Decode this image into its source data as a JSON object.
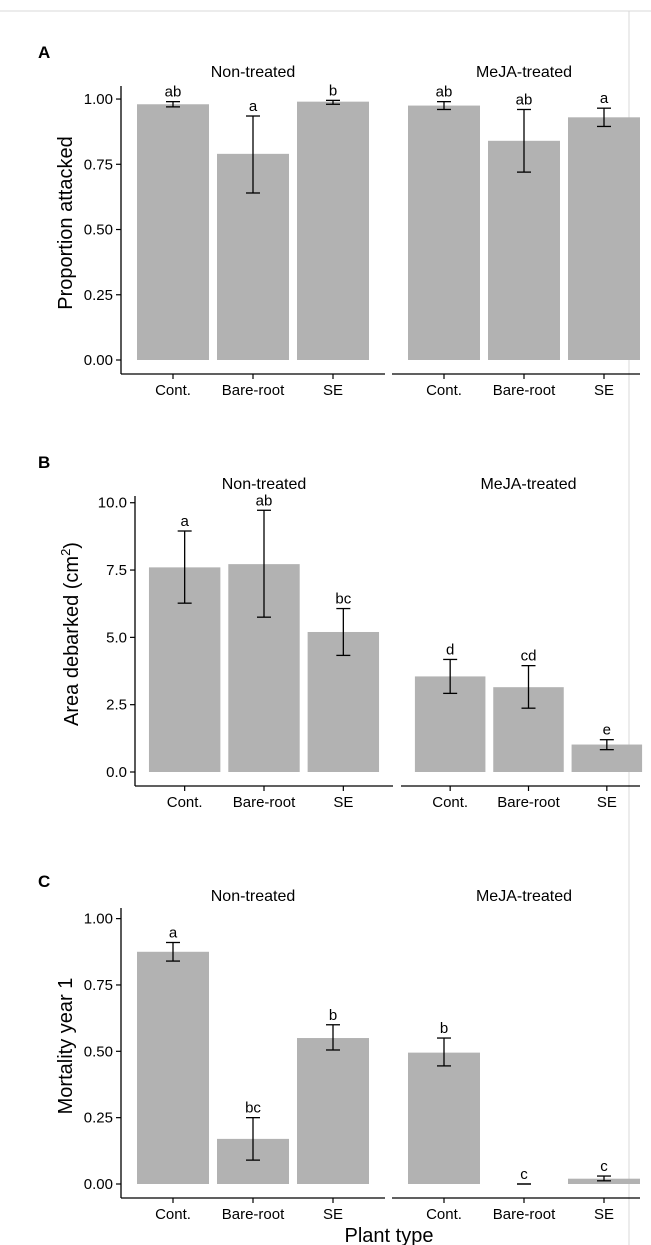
{
  "chart_data": [
    {
      "type": "bar",
      "panel_label": "A",
      "ylabel": "Proportion attacked",
      "ylabel_superscript": "",
      "ylabel_suffix": "",
      "xlabel": "",
      "ylim": [
        0,
        1.05
      ],
      "yticks": [
        "0.00",
        "0.25",
        "0.50",
        "0.75",
        "1.00"
      ],
      "ytick_values": [
        0,
        0.25,
        0.5,
        0.75,
        1.0
      ],
      "facets": [
        "Non-treated",
        "MeJA-treated"
      ],
      "categories": [
        "Cont.",
        "Bare-root",
        "SE"
      ],
      "series": [
        {
          "facet": "Non-treated",
          "values": [
            0.98,
            0.79,
            0.99
          ],
          "err_low": [
            0.97,
            0.64,
            0.98
          ],
          "err_high": [
            0.99,
            0.935,
            0.995
          ],
          "letters": [
            "ab",
            "a",
            "b"
          ]
        },
        {
          "facet": "MeJA-treated",
          "values": [
            0.975,
            0.84,
            0.93
          ],
          "err_low": [
            0.96,
            0.72,
            0.895
          ],
          "err_high": [
            0.99,
            0.96,
            0.965
          ],
          "letters": [
            "ab",
            "ab",
            "a"
          ]
        }
      ],
      "bar_color": "#b2b2b2",
      "grid": false
    },
    {
      "type": "bar",
      "panel_label": "B",
      "ylabel": "Area debarked (cm",
      "ylabel_superscript": "2",
      "ylabel_suffix": ")",
      "xlabel": "",
      "ylim": [
        0,
        10.25
      ],
      "yticks": [
        "0.0",
        "2.5",
        "5.0",
        "7.5",
        "10.0"
      ],
      "ytick_values": [
        0,
        2.5,
        5.0,
        7.5,
        10.0
      ],
      "facets": [
        "Non-treated",
        "MeJA-treated"
      ],
      "categories": [
        "Cont.",
        "Bare-root",
        "SE"
      ],
      "series": [
        {
          "facet": "Non-treated",
          "values": [
            7.6,
            7.72,
            5.2
          ],
          "err_low": [
            6.27,
            5.75,
            4.33
          ],
          "err_high": [
            8.95,
            9.72,
            6.07
          ],
          "letters": [
            "a",
            "ab",
            "bc"
          ]
        },
        {
          "facet": "MeJA-treated",
          "values": [
            3.55,
            3.15,
            1.02
          ],
          "err_low": [
            2.92,
            2.37,
            0.83
          ],
          "err_high": [
            4.18,
            3.95,
            1.2
          ],
          "letters": [
            "d",
            "cd",
            "e"
          ]
        }
      ],
      "bar_color": "#b2b2b2",
      "grid": false
    },
    {
      "type": "bar",
      "panel_label": "C",
      "ylabel": "Mortality year 1",
      "ylabel_superscript": "",
      "ylabel_suffix": "",
      "xlabel": "Plant type",
      "ylim": [
        0,
        1.04
      ],
      "yticks": [
        "0.00",
        "0.25",
        "0.50",
        "0.75",
        "1.00"
      ],
      "ytick_values": [
        0,
        0.25,
        0.5,
        0.75,
        1.0
      ],
      "facets": [
        "Non-treated",
        "MeJA-treated"
      ],
      "categories": [
        "Cont.",
        "Bare-root",
        "SE"
      ],
      "series": [
        {
          "facet": "Non-treated",
          "values": [
            0.875,
            0.17,
            0.55
          ],
          "err_low": [
            0.84,
            0.09,
            0.505
          ],
          "err_high": [
            0.91,
            0.25,
            0.6
          ],
          "letters": [
            "a",
            "bc",
            "b"
          ]
        },
        {
          "facet": "MeJA-treated",
          "values": [
            0.495,
            0.0,
            0.02
          ],
          "err_low": [
            0.445,
            0.0,
            0.012
          ],
          "err_high": [
            0.55,
            0.0,
            0.03
          ],
          "letters": [
            "b",
            "c",
            "c"
          ]
        }
      ],
      "bar_color": "#b2b2b2",
      "grid": false
    }
  ]
}
